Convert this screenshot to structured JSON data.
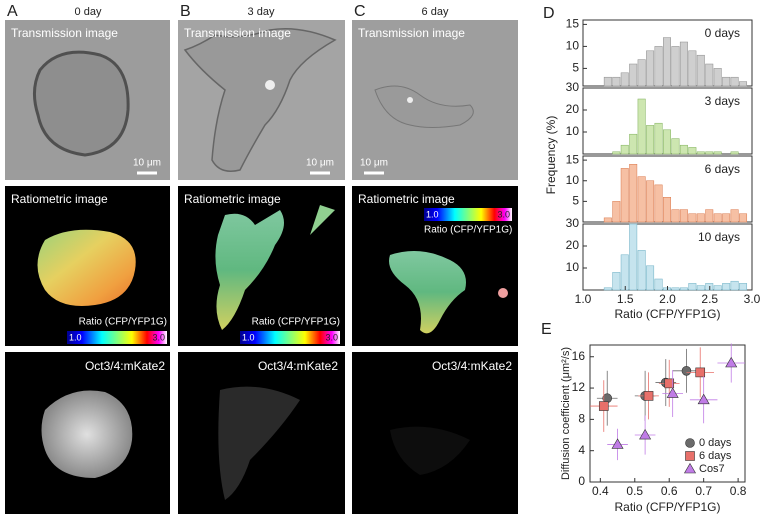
{
  "panels": [
    {
      "label": "A",
      "day": "0 day",
      "transmission": "Transmission image",
      "scale": "10 μm",
      "ratiometric": "Ratiometric image",
      "colorbar_label": "Ratio (CFP/YFP1G)",
      "colorbar_min": "1.0",
      "colorbar_max": "3.0",
      "fluorescence": "Oct3/4:mKate2"
    },
    {
      "label": "B",
      "day": "3 day",
      "transmission": "Transmission image",
      "scale": "10 μm",
      "ratiometric": "Ratiometric image",
      "colorbar_label": "Ratio (CFP/YFP1G)",
      "colorbar_min": "1.0",
      "colorbar_max": "3.0",
      "fluorescence": "Oct3/4:mKate2"
    },
    {
      "label": "C",
      "day": "6 day",
      "transmission": "Transmission image",
      "scale": "10 μm",
      "ratiometric": "Ratiometric image",
      "colorbar_label": "Ratio (CFP/YFP1G)",
      "colorbar_min": "1.0",
      "colorbar_max": "3.0",
      "fluorescence": "Oct3/4:mKate2"
    }
  ],
  "chart_data": [
    {
      "type": "histogram",
      "panel": "D",
      "ylabel": "Frequency (%)",
      "title": "0 days",
      "color": "#cfcfcf",
      "edge": "#8a8a8a",
      "bins": [
        1.25,
        1.35,
        1.45,
        1.55,
        1.65,
        1.75,
        1.85,
        1.95,
        2.05,
        2.15,
        2.25,
        2.35,
        2.45,
        2.55,
        2.65,
        2.75,
        2.85,
        2.95
      ],
      "values": [
        3,
        3,
        4,
        6,
        7,
        9,
        10,
        12,
        10,
        11,
        9,
        8,
        6,
        5,
        3,
        3,
        2
      ],
      "ylim": [
        1,
        16
      ],
      "yticks": [
        5,
        10,
        15
      ]
    },
    {
      "type": "histogram",
      "title": "3 days",
      "color": "#cde6b0",
      "edge": "#7fb05a",
      "bins": [
        1.25,
        1.35,
        1.45,
        1.55,
        1.65,
        1.75,
        1.85,
        1.95,
        2.05,
        2.15,
        2.25,
        2.35,
        2.45,
        2.55,
        2.65,
        2.75,
        2.85,
        2.95
      ],
      "values": [
        0,
        1,
        4,
        9,
        25,
        13,
        14,
        11,
        7,
        4,
        3,
        1,
        1,
        1,
        0,
        1,
        0
      ],
      "ylim": [
        0,
        30
      ],
      "yticks": [
        10,
        20,
        30
      ]
    },
    {
      "type": "histogram",
      "title": "6 days",
      "color": "#f6c0a4",
      "edge": "#d9774a",
      "bins": [
        1.25,
        1.35,
        1.45,
        1.55,
        1.65,
        1.75,
        1.85,
        1.95,
        2.05,
        2.15,
        2.25,
        2.35,
        2.45,
        2.55,
        2.65,
        2.75,
        2.85,
        2.95
      ],
      "values": [
        1,
        5,
        13,
        14,
        11,
        10,
        9,
        6,
        3,
        3,
        2,
        2,
        3,
        2,
        2,
        3,
        2
      ],
      "ylim": [
        0,
        16
      ],
      "yticks": [
        5,
        10,
        15
      ]
    },
    {
      "type": "histogram",
      "title": "10 days",
      "color": "#c6e4ee",
      "edge": "#6aaec4",
      "bins": [
        1.25,
        1.35,
        1.45,
        1.55,
        1.65,
        1.75,
        1.85,
        1.95,
        2.05,
        2.15,
        2.25,
        2.35,
        2.45,
        2.55,
        2.65,
        2.75,
        2.85,
        2.95
      ],
      "values": [
        1,
        8,
        16,
        30,
        18,
        11,
        5,
        1,
        1,
        1,
        3,
        2,
        3,
        2,
        3,
        4,
        3
      ],
      "ylim": [
        0,
        30
      ],
      "yticks": [
        10,
        20,
        30
      ],
      "xlabel": "Ratio (CFP/YFP1G)",
      "xlim": [
        1,
        3
      ],
      "xticks": [
        {
          "value": 1,
          "label": "1.0"
        },
        {
          "value": 1.5,
          "label": "1.5"
        },
        {
          "value": 2,
          "label": "2.0"
        },
        {
          "value": 2.5,
          "label": "2.5"
        },
        {
          "value": 3,
          "label": "3.0"
        }
      ]
    },
    {
      "type": "scatter",
      "panel": "E",
      "xlabel": "Ratio (CFP/YFP1G)",
      "ylabel": "Diffusion coefficient (μm²/s)",
      "xlim": [
        0.37,
        0.82
      ],
      "xticks": [
        0.4,
        0.5,
        0.6,
        0.7,
        0.8
      ],
      "ylim": [
        0,
        17.5
      ],
      "yticks": [
        0,
        4,
        8,
        12,
        16
      ],
      "series": [
        {
          "name": "0 days",
          "color": "#6b6b6b",
          "marker": "circle",
          "x": [
            0.42,
            0.53,
            0.59,
            0.65
          ],
          "values": [
            10.7,
            11,
            12.7,
            14.2
          ],
          "x_err": [
            0.03,
            0.03,
            0.03,
            0.04
          ],
          "y_err": [
            3.5,
            3.2,
            3,
            2.8
          ]
        },
        {
          "name": "6 days",
          "color": "#e8706a",
          "marker": "square",
          "x": [
            0.41,
            0.54,
            0.6,
            0.69
          ],
          "values": [
            9.7,
            11,
            12.6,
            14
          ],
          "x_err": [
            0.04,
            0.03,
            0.03,
            0.04
          ],
          "y_err": [
            3.3,
            3,
            3,
            3.2
          ]
        },
        {
          "name": "Cos7",
          "color": "#c07ce6",
          "marker": "triangle",
          "x": [
            0.45,
            0.53,
            0.61,
            0.7,
            0.78
          ],
          "values": [
            4.8,
            6,
            11.3,
            10.5,
            15.2
          ],
          "x_err": [
            0.03,
            0.03,
            0.03,
            0.04,
            0.04
          ],
          "y_err": [
            2,
            2.5,
            3,
            3,
            2.5
          ]
        }
      ]
    }
  ]
}
